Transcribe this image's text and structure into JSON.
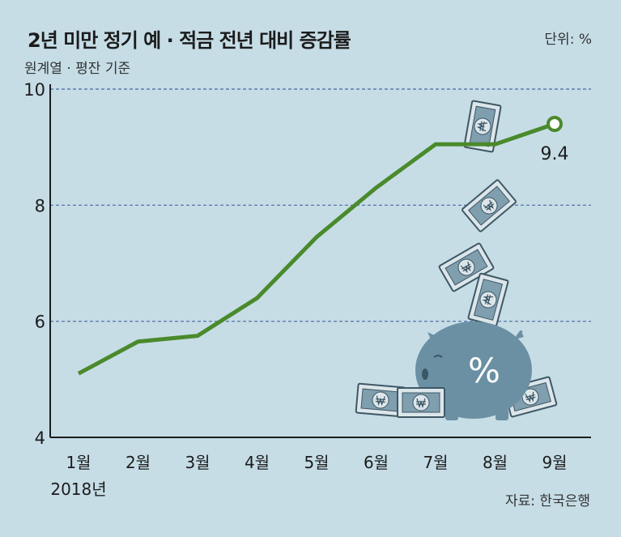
{
  "header": {
    "title": "2년 미만 정기 예 · 적금 전년 대비 증감률",
    "subtitle": "원계열 · 평잔 기준",
    "unit": "단위: %",
    "source": "자료: 한국은행"
  },
  "colors": {
    "line": "#4a8a2c",
    "grid": "#4a6aa0",
    "axis": "#1c1c1c",
    "illustration": "#6b8fa3"
  },
  "illustration": {
    "icon": "piggy-bank-with-money-icon",
    "symbol": "%"
  },
  "chart_data": {
    "type": "line",
    "categories": [
      "1월",
      "2월",
      "3월",
      "4월",
      "5월",
      "6월",
      "7월",
      "8월",
      "9월"
    ],
    "year_label": "2018년",
    "series": [
      {
        "values": [
          5.1,
          5.65,
          5.75,
          6.4,
          7.45,
          8.3,
          9.05,
          9.05,
          9.4
        ]
      }
    ],
    "data_labels": [
      {
        "index": 8,
        "text": "9.4"
      }
    ],
    "ylim": [
      4,
      10
    ],
    "yticks": [
      4,
      6,
      8,
      10
    ],
    "grid": true
  }
}
